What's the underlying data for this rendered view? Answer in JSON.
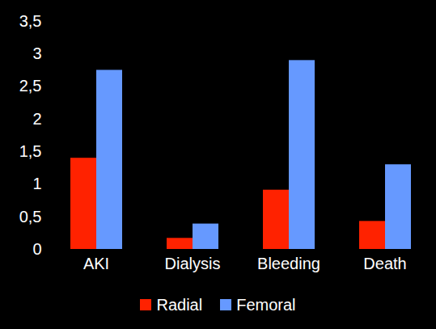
{
  "chart_data": {
    "type": "bar",
    "categories": [
      "AKI",
      "Dialysis",
      "Bleeding",
      "Death"
    ],
    "series": [
      {
        "name": "Radial",
        "color": "#ff2200",
        "values": [
          1.4,
          0.17,
          0.91,
          0.43
        ]
      },
      {
        "name": "Femoral",
        "color": "#6699ff",
        "values": [
          2.75,
          0.39,
          2.9,
          1.3
        ]
      }
    ],
    "ylim": [
      0,
      3.5
    ],
    "yticks": [
      0,
      {
        "value": 0.5,
        "label": "0,5"
      },
      1,
      {
        "value": 1.5,
        "label": "1,5"
      },
      2,
      {
        "value": 2.5,
        "label": "2,5"
      },
      3,
      {
        "value": 3.5,
        "label": "3,5"
      }
    ],
    "grid": false,
    "legend": "bottom"
  }
}
